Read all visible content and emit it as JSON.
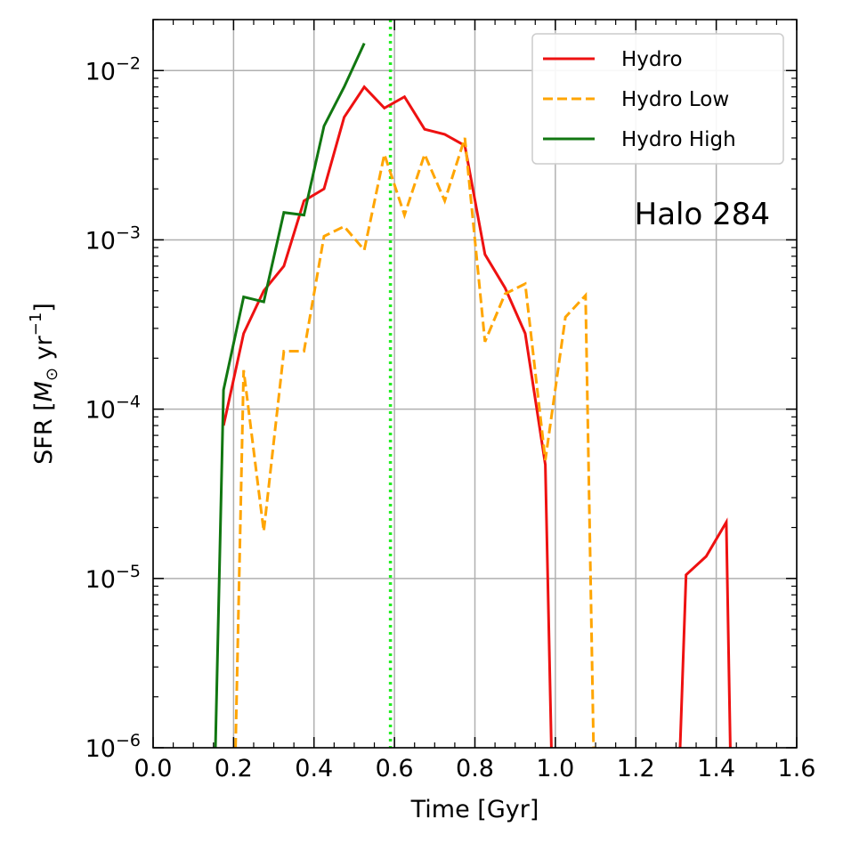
{
  "chart_data": {
    "type": "line",
    "title": "",
    "xlabel": "Time [Gyr]",
    "ylabel": "SFR [M⊙ yr⁻¹]",
    "ylabel_parts": {
      "prefix": "SFR [",
      "symbol": "M",
      "sub": "⊙",
      "unit": " yr",
      "exp": "−1",
      "suffix": "]"
    },
    "xlim": [
      0.0,
      1.6
    ],
    "ylim": [
      1e-06,
      0.02
    ],
    "yscale": "log",
    "grid": true,
    "legend_position": "top-right",
    "annotation": "Halo 284",
    "x_ticks": [
      "0.0",
      "0.2",
      "0.4",
      "0.6",
      "0.8",
      "1.0",
      "1.2",
      "1.4",
      "1.6"
    ],
    "x_tick_values": [
      0.0,
      0.2,
      0.4,
      0.6,
      0.8,
      1.0,
      1.2,
      1.4,
      1.6
    ],
    "y_ticks": [
      {
        "value": 1e-06,
        "base": "10",
        "exp": "−6"
      },
      {
        "value": 1e-05,
        "base": "10",
        "exp": "−5"
      },
      {
        "value": 0.0001,
        "base": "10",
        "exp": "−4"
      },
      {
        "value": 0.001,
        "base": "10",
        "exp": "−3"
      },
      {
        "value": 0.01,
        "base": "10",
        "exp": "−2"
      }
    ],
    "vertical_line": {
      "x": 0.59,
      "color": "#22ee22",
      "style": "dotted"
    },
    "series": [
      {
        "name": "Hydro",
        "color": "#ee1111",
        "style": "solid",
        "segments": [
          [
            [
              0.175,
              8e-05
            ],
            [
              0.225,
              0.00028
            ],
            [
              0.275,
              0.0005
            ],
            [
              0.325,
              0.0007
            ],
            [
              0.375,
              0.0017
            ],
            [
              0.425,
              0.002
            ],
            [
              0.475,
              0.0053
            ],
            [
              0.525,
              0.008
            ],
            [
              0.575,
              0.006
            ],
            [
              0.625,
              0.007
            ],
            [
              0.675,
              0.0045
            ],
            [
              0.725,
              0.0042
            ],
            [
              0.775,
              0.0036
            ],
            [
              0.825,
              0.00082
            ],
            [
              0.875,
              0.00052
            ],
            [
              0.925,
              0.00028
            ],
            [
              0.975,
              4.7e-05
            ],
            [
              0.99,
              1e-06
            ]
          ],
          [
            [
              1.31,
              1e-06
            ],
            [
              1.325,
              1.05e-05
            ],
            [
              1.375,
              1.35e-05
            ],
            [
              1.425,
              2.15e-05
            ],
            [
              1.435,
              1e-06
            ]
          ]
        ]
      },
      {
        "name": "Hydro Low",
        "color": "#ffa500",
        "style": "dashed",
        "segments": [
          [
            [
              0.205,
              1e-06
            ],
            [
              0.225,
              0.00017
            ],
            [
              0.275,
              1.9e-05
            ],
            [
              0.325,
              0.00022
            ],
            [
              0.375,
              0.00022
            ],
            [
              0.425,
              0.00105
            ],
            [
              0.475,
              0.0012
            ],
            [
              0.525,
              0.00087
            ],
            [
              0.575,
              0.0032
            ],
            [
              0.625,
              0.0014
            ],
            [
              0.675,
              0.0032
            ],
            [
              0.725,
              0.0017
            ],
            [
              0.775,
              0.004
            ],
            [
              0.825,
              0.00025
            ],
            [
              0.875,
              0.00048
            ],
            [
              0.925,
              0.00055
            ],
            [
              0.975,
              5e-05
            ],
            [
              1.025,
              0.00035
            ],
            [
              1.075,
              0.00047
            ],
            [
              1.095,
              1e-06
            ]
          ]
        ]
      },
      {
        "name": "Hydro High",
        "color": "#117711",
        "style": "solid",
        "segments": [
          [
            [
              0.155,
              1e-06
            ],
            [
              0.175,
              0.00013
            ],
            [
              0.225,
              0.00046
            ],
            [
              0.275,
              0.00043
            ],
            [
              0.325,
              0.00145
            ],
            [
              0.375,
              0.0014
            ],
            [
              0.425,
              0.0047
            ],
            [
              0.475,
              0.008
            ],
            [
              0.525,
              0.0145
            ]
          ]
        ]
      }
    ]
  }
}
